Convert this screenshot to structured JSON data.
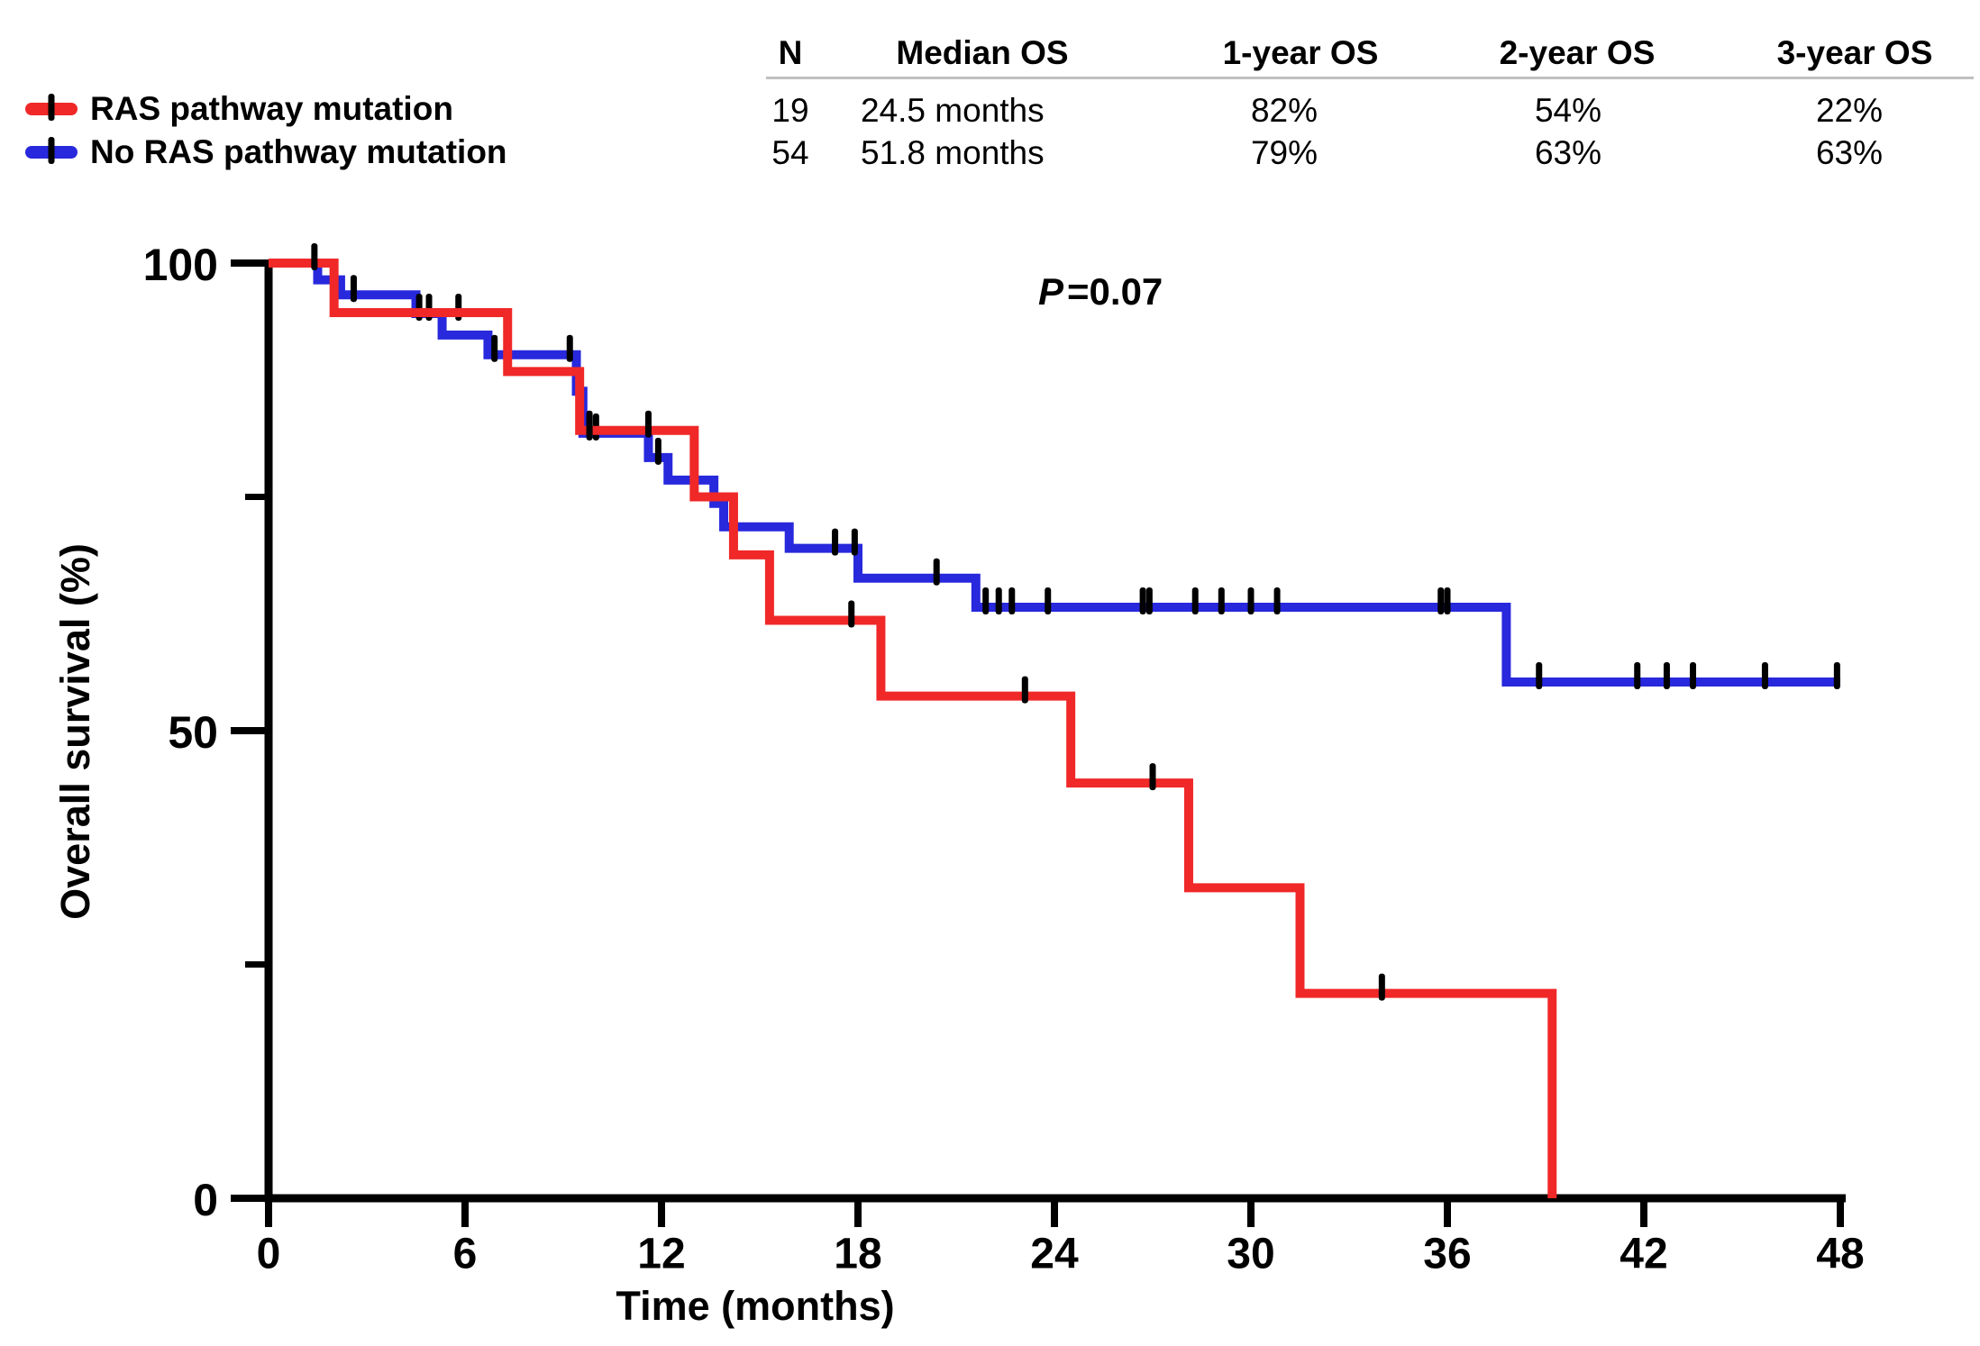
{
  "legend": {
    "items": [
      {
        "label": "RAS pathway mutation",
        "color": "#f02828",
        "marker": "line-with-censor-tick"
      },
      {
        "label": "No RAS pathway mutation",
        "color": "#2828dd",
        "marker": "line-with-censor-tick"
      }
    ]
  },
  "stats_table": {
    "headers": [
      "N",
      "Median OS",
      "1-year OS",
      "2-year OS",
      "3-year OS"
    ],
    "rows": [
      {
        "group": "RAS pathway mutation",
        "cells": [
          "19",
          "24.5 months",
          "82%",
          "54%",
          "22%"
        ]
      },
      {
        "group": "No RAS pathway mutation",
        "cells": [
          "54",
          "51.8 months",
          "79%",
          "63%",
          "63%"
        ]
      }
    ]
  },
  "annotation": {
    "p_symbol": "P",
    "p_rest": "=0.07"
  },
  "chart_data": {
    "type": "line",
    "subtype": "kaplan-meier-step",
    "title": "",
    "xlabel": "Time (months)",
    "ylabel": "Overall survival (%)",
    "xlim": [
      0,
      48
    ],
    "ylim": [
      0,
      100
    ],
    "x_ticks": [
      0,
      6,
      12,
      18,
      24,
      30,
      36,
      42,
      48
    ],
    "y_ticks_major": [
      100,
      50,
      0
    ],
    "y_ticks_minor": [
      75,
      25
    ],
    "grid": false,
    "legend_position": "top-left",
    "axis_color": "#000000",
    "series": [
      {
        "name": "No RAS pathway mutation",
        "color": "#2828dd",
        "n": 54,
        "start": [
          0,
          100
        ],
        "drops": [
          [
            1.5,
            98.2
          ],
          [
            2.2,
            96.6
          ],
          [
            4.5,
            94.6
          ],
          [
            5.3,
            92.3
          ],
          [
            6.7,
            90.2
          ],
          [
            9.4,
            86.3
          ],
          [
            9.6,
            81.8
          ],
          [
            11.6,
            79.2
          ],
          [
            12.2,
            76.8
          ],
          [
            13.6,
            74.3
          ],
          [
            13.9,
            71.8
          ],
          [
            15.9,
            69.5
          ],
          [
            18.0,
            66.3
          ],
          [
            21.6,
            63.2
          ],
          [
            37.8,
            55.2
          ]
        ],
        "end_time": 48,
        "censors": [
          [
            2.6,
            96.6
          ],
          [
            4.6,
            94.6
          ],
          [
            4.9,
            94.6
          ],
          [
            5.8,
            94.6
          ],
          [
            6.9,
            90.2
          ],
          [
            9.2,
            90.2
          ],
          [
            9.5,
            86.3
          ],
          [
            9.8,
            81.8
          ],
          [
            10.0,
            81.8
          ],
          [
            11.9,
            79.2
          ],
          [
            17.3,
            69.5
          ],
          [
            17.9,
            69.5
          ],
          [
            20.4,
            66.3
          ],
          [
            21.9,
            63.2
          ],
          [
            22.3,
            63.2
          ],
          [
            22.7,
            63.2
          ],
          [
            23.8,
            63.2
          ],
          [
            26.7,
            63.2
          ],
          [
            26.9,
            63.2
          ],
          [
            28.3,
            63.2
          ],
          [
            29.1,
            63.2
          ],
          [
            30.0,
            63.2
          ],
          [
            30.8,
            63.2
          ],
          [
            35.8,
            63.2
          ],
          [
            36.0,
            63.2
          ],
          [
            38.8,
            55.2
          ],
          [
            41.8,
            55.2
          ],
          [
            42.7,
            55.2
          ],
          [
            43.5,
            55.2
          ],
          [
            45.7,
            55.2
          ],
          [
            47.9,
            55.2
          ]
        ]
      },
      {
        "name": "RAS pathway mutation",
        "color": "#f02828",
        "n": 19,
        "start": [
          0,
          100
        ],
        "drops": [
          [
            2.0,
            94.7
          ],
          [
            7.3,
            88.4
          ],
          [
            9.5,
            82.1
          ],
          [
            13.0,
            75.0
          ],
          [
            14.2,
            68.8
          ],
          [
            15.3,
            61.8
          ],
          [
            18.7,
            53.7
          ],
          [
            24.5,
            44.4
          ],
          [
            28.1,
            33.2
          ],
          [
            31.5,
            21.9
          ],
          [
            39.2,
            0
          ]
        ],
        "end_time": 39.2,
        "censors": [
          [
            1.4,
            100
          ],
          [
            9.8,
            82.1
          ],
          [
            11.6,
            82.1
          ],
          [
            17.8,
            61.8
          ],
          [
            23.1,
            53.7
          ],
          [
            27.0,
            44.4
          ],
          [
            34.0,
            21.9
          ]
        ]
      }
    ]
  }
}
